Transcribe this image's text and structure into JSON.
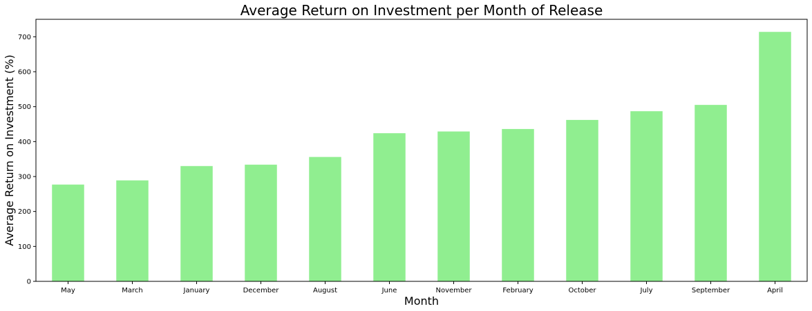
{
  "chart_data": {
    "type": "bar",
    "title": "Average Return on Investment per Month of Release",
    "xlabel": "Month",
    "ylabel": "Average Return on Investment (%)",
    "categories": [
      "May",
      "March",
      "January",
      "December",
      "August",
      "June",
      "November",
      "February",
      "October",
      "July",
      "September",
      "April"
    ],
    "values": [
      277,
      289,
      330,
      334,
      356,
      424,
      429,
      436,
      462,
      487,
      505,
      714
    ],
    "ylim": [
      0,
      750
    ],
    "yticks": [
      0,
      100,
      200,
      300,
      400,
      500,
      600,
      700
    ],
    "bar_color": "#90ee90",
    "grid": false,
    "legend": "none"
  }
}
